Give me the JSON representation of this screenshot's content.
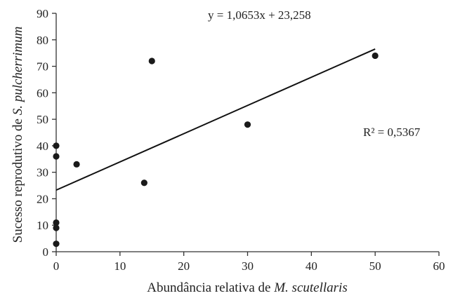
{
  "chart_data": {
    "type": "scatter",
    "xlabel_prefix": "Abundância relativa de ",
    "xlabel_italic": "M. scutellaris",
    "ylabel_prefix": "Sucesso reprodutivo de ",
    "ylabel_italic": "S. pulcherrimum",
    "xlim": [
      0,
      60
    ],
    "ylim": [
      0,
      90
    ],
    "xticks": [
      "0",
      "10",
      "20",
      "30",
      "40",
      "50",
      "60"
    ],
    "yticks": [
      "0",
      "10",
      "20",
      "30",
      "40",
      "50",
      "60",
      "70",
      "80",
      "90"
    ],
    "points": [
      {
        "x": 0,
        "y": 3
      },
      {
        "x": 0,
        "y": 9
      },
      {
        "x": 0,
        "y": 11
      },
      {
        "x": 0,
        "y": 36
      },
      {
        "x": 0,
        "y": 40
      },
      {
        "x": 3.2,
        "y": 33
      },
      {
        "x": 13.8,
        "y": 26
      },
      {
        "x": 15,
        "y": 72
      },
      {
        "x": 30,
        "y": 48
      },
      {
        "x": 50,
        "y": 74
      }
    ],
    "trendline": {
      "slope": 1.0653,
      "intercept": 23.258,
      "x_range": [
        0,
        50
      ]
    },
    "equation_text": "y = 1,0653x + 23,258",
    "r2_text": "R² = 0,5367",
    "grid": false,
    "legend": "none"
  }
}
